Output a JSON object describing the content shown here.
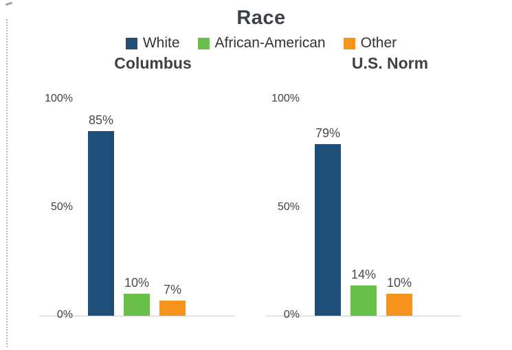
{
  "title": "Race",
  "legend": [
    {
      "label": "White",
      "color": "#1f4e79"
    },
    {
      "label": "African-American",
      "color": "#6abf4a"
    },
    {
      "label": "Other",
      "color": "#f7941e"
    }
  ],
  "chart_data": {
    "type": "bar",
    "title": "Race",
    "categories": [
      "White",
      "African-American",
      "Other"
    ],
    "series_colors": [
      "#1f4e79",
      "#6abf4a",
      "#f7941e"
    ],
    "ylim": [
      0,
      100
    ],
    "yticks": [
      "100%",
      "50%",
      "0%"
    ],
    "grid": false,
    "legend_position": "top",
    "panels": [
      {
        "title": "Columbus",
        "values": [
          85,
          10,
          7
        ],
        "labels": [
          "85%",
          "10%",
          "7%"
        ]
      },
      {
        "title": "U.S. Norm",
        "values": [
          79,
          14,
          10
        ],
        "labels": [
          "79%",
          "14%",
          "10%"
        ]
      }
    ]
  }
}
